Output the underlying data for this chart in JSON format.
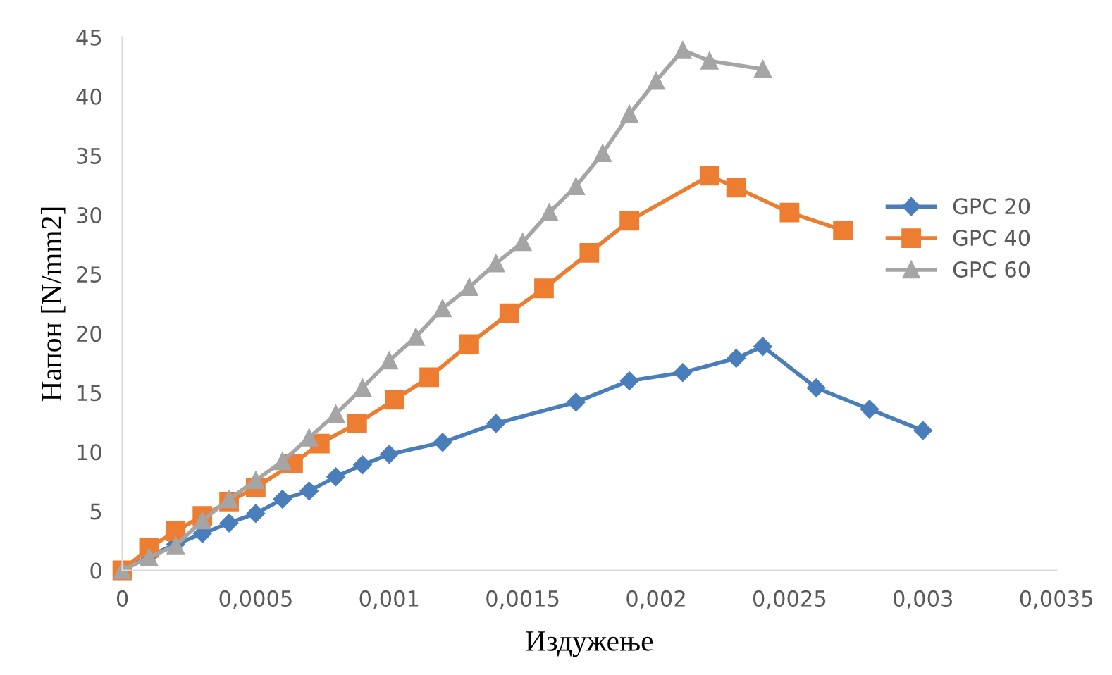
{
  "chart_data": {
    "type": "line",
    "xlabel": "Издужење",
    "ylabel": "Напон [N/mm2]",
    "xlim": [
      0,
      0.0035
    ],
    "ylim": [
      0,
      45
    ],
    "xticks": [
      0,
      {
        "value": 0.0005,
        "label": "0,0005"
      },
      {
        "value": 0.001,
        "label": "0,001"
      },
      {
        "value": 0.0015,
        "label": "0,0015"
      },
      {
        "value": 0.002,
        "label": "0,002"
      },
      {
        "value": 0.0025,
        "label": "0,0025"
      },
      {
        "value": 0.003,
        "label": "0,003"
      },
      {
        "value": 0.0035,
        "label": "0,0035"
      }
    ],
    "yticks": [
      0,
      5,
      10,
      15,
      20,
      25,
      30,
      35,
      40,
      45
    ],
    "grid": false,
    "legend": "right",
    "line_style": "solid",
    "series": [
      {
        "name": "GPC 20",
        "color": "#4a7ebb",
        "marker": "diamond",
        "x": [
          0,
          0.0001,
          0.0002,
          0.0003,
          0.0004,
          0.0005,
          0.0006,
          0.0007,
          0.0008,
          0.0009,
          0.001,
          0.0012,
          0.0014,
          0.0017,
          0.0019,
          0.0021,
          0.0023,
          0.0024,
          0.0026,
          0.0028,
          0.003
        ],
        "values": [
          0,
          1.2,
          2.2,
          3.1,
          4.0,
          4.8,
          6.0,
          6.7,
          7.9,
          8.9,
          9.8,
          10.8,
          12.4,
          14.2,
          16.0,
          16.7,
          17.9,
          18.9,
          15.4,
          13.6,
          11.8
        ]
      },
      {
        "name": "GPC 40",
        "color": "#ed7d31",
        "marker": "square",
        "x": [
          0,
          0.0001,
          0.0002,
          0.0003,
          0.0004,
          0.0005,
          0.00064,
          0.00074,
          0.00088,
          0.00102,
          0.00115,
          0.0013,
          0.00145,
          0.00158,
          0.00175,
          0.0019,
          0.0022,
          0.0023,
          0.0025,
          0.0027
        ],
        "values": [
          0,
          1.9,
          3.3,
          4.6,
          5.8,
          7.0,
          9.0,
          10.7,
          12.4,
          14.4,
          16.3,
          19.1,
          21.7,
          23.8,
          26.8,
          29.5,
          33.3,
          32.3,
          30.2,
          28.7
        ]
      },
      {
        "name": "GPC 60",
        "color": "#a5a5a5",
        "marker": "triangle",
        "x": [
          0,
          0.0001,
          0.0002,
          0.0003,
          0.0004,
          0.0005,
          0.0006,
          0.0007,
          0.0008,
          0.0009,
          0.001,
          0.0011,
          0.0012,
          0.0013,
          0.0014,
          0.0015,
          0.0016,
          0.0017,
          0.0018,
          0.0019,
          0.002,
          0.0021,
          0.0022,
          0.0024
        ],
        "values": [
          0,
          1.1,
          2.1,
          4.2,
          6.0,
          7.6,
          9.2,
          11.2,
          13.2,
          15.4,
          17.7,
          19.7,
          22.1,
          23.9,
          25.9,
          27.7,
          30.2,
          32.4,
          35.2,
          38.5,
          41.3,
          43.9,
          43.0,
          42.3
        ]
      }
    ]
  }
}
